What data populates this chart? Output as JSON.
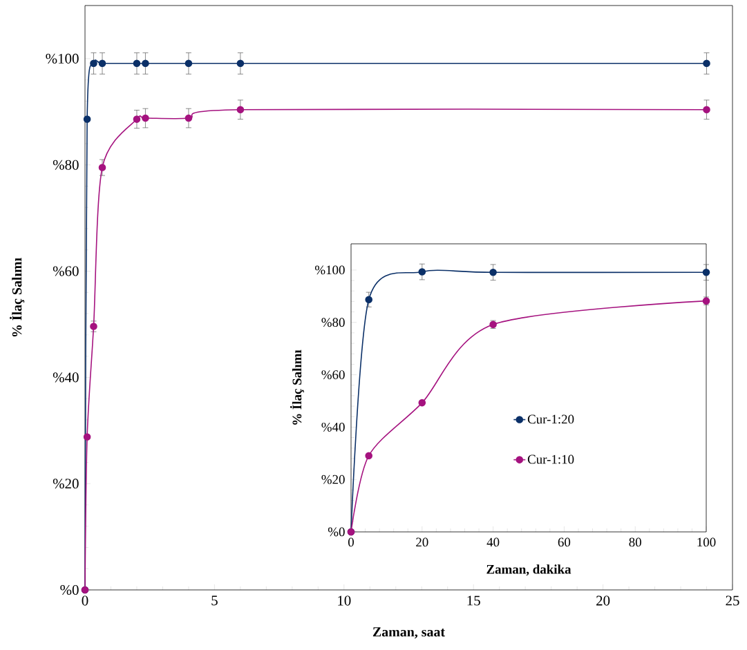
{
  "chart_data": [
    {
      "type": "line",
      "xlabel": "Zaman, saat",
      "ylabel": "% İlaç Salımı",
      "x": [
        0,
        0.083,
        0.333,
        0.667,
        2,
        2.333,
        4,
        6,
        24
      ],
      "xlim": [
        0,
        25
      ],
      "xticks": [
        0,
        5,
        10,
        15,
        20,
        25
      ],
      "ylim": [
        0,
        110
      ],
      "yticks": [
        {
          "value": 0,
          "label": "%0"
        },
        {
          "value": 20,
          "label": "%20"
        },
        {
          "value": 40,
          "label": "%40"
        },
        {
          "value": 60,
          "label": "%60"
        },
        {
          "value": 80,
          "label": "%80"
        },
        {
          "value": 100,
          "label": "%100"
        }
      ],
      "marker": "circle",
      "line_style": "solid",
      "series": [
        {
          "color": "#0b3068",
          "values": [
            0,
            88.6,
            99.1,
            99.1,
            99.1,
            99.1,
            99.1,
            99.1,
            99.1
          ],
          "errors": [
            null,
            null,
            2,
            2,
            2,
            2,
            2,
            2,
            2
          ]
        },
        {
          "color": "#a5127f",
          "values": [
            0,
            28.8,
            49.6,
            79.5,
            88.6,
            88.8,
            88.8,
            90.4,
            90.4
          ],
          "errors": [
            null,
            null,
            1,
            1.5,
            1.7,
            1.8,
            1.8,
            1.8,
            1.8
          ]
        }
      ]
    },
    {
      "type": "line",
      "xlabel": "Zaman, dakika",
      "ylabel": "% İlaç Salımı",
      "x": [
        0,
        5,
        20,
        40,
        100
      ],
      "xlim": [
        0,
        100
      ],
      "xticks": [
        0,
        20,
        40,
        60,
        80,
        100
      ],
      "ylim": [
        0,
        110
      ],
      "yticks": [
        {
          "value": 0,
          "label": "%0"
        },
        {
          "value": 20,
          "label": "%20"
        },
        {
          "value": 40,
          "label": "%40"
        },
        {
          "value": 60,
          "label": "%60"
        },
        {
          "value": 80,
          "label": "%80"
        },
        {
          "value": 100,
          "label": "%100"
        }
      ],
      "marker": "circle",
      "line_style": "solid",
      "legend": "right",
      "series": [
        {
          "name": "Cur-1:20",
          "color": "#0b3068",
          "values": [
            0,
            88.7,
            99.3,
            99.1,
            99.1
          ],
          "errors": [
            null,
            2.8,
            3,
            3,
            3
          ]
        },
        {
          "name": "Cur-1:10",
          "color": "#a5127f",
          "values": [
            0,
            29.1,
            49.3,
            79.2,
            88.2
          ],
          "errors": [
            null,
            null,
            null,
            1.5,
            1.5
          ]
        }
      ]
    }
  ]
}
